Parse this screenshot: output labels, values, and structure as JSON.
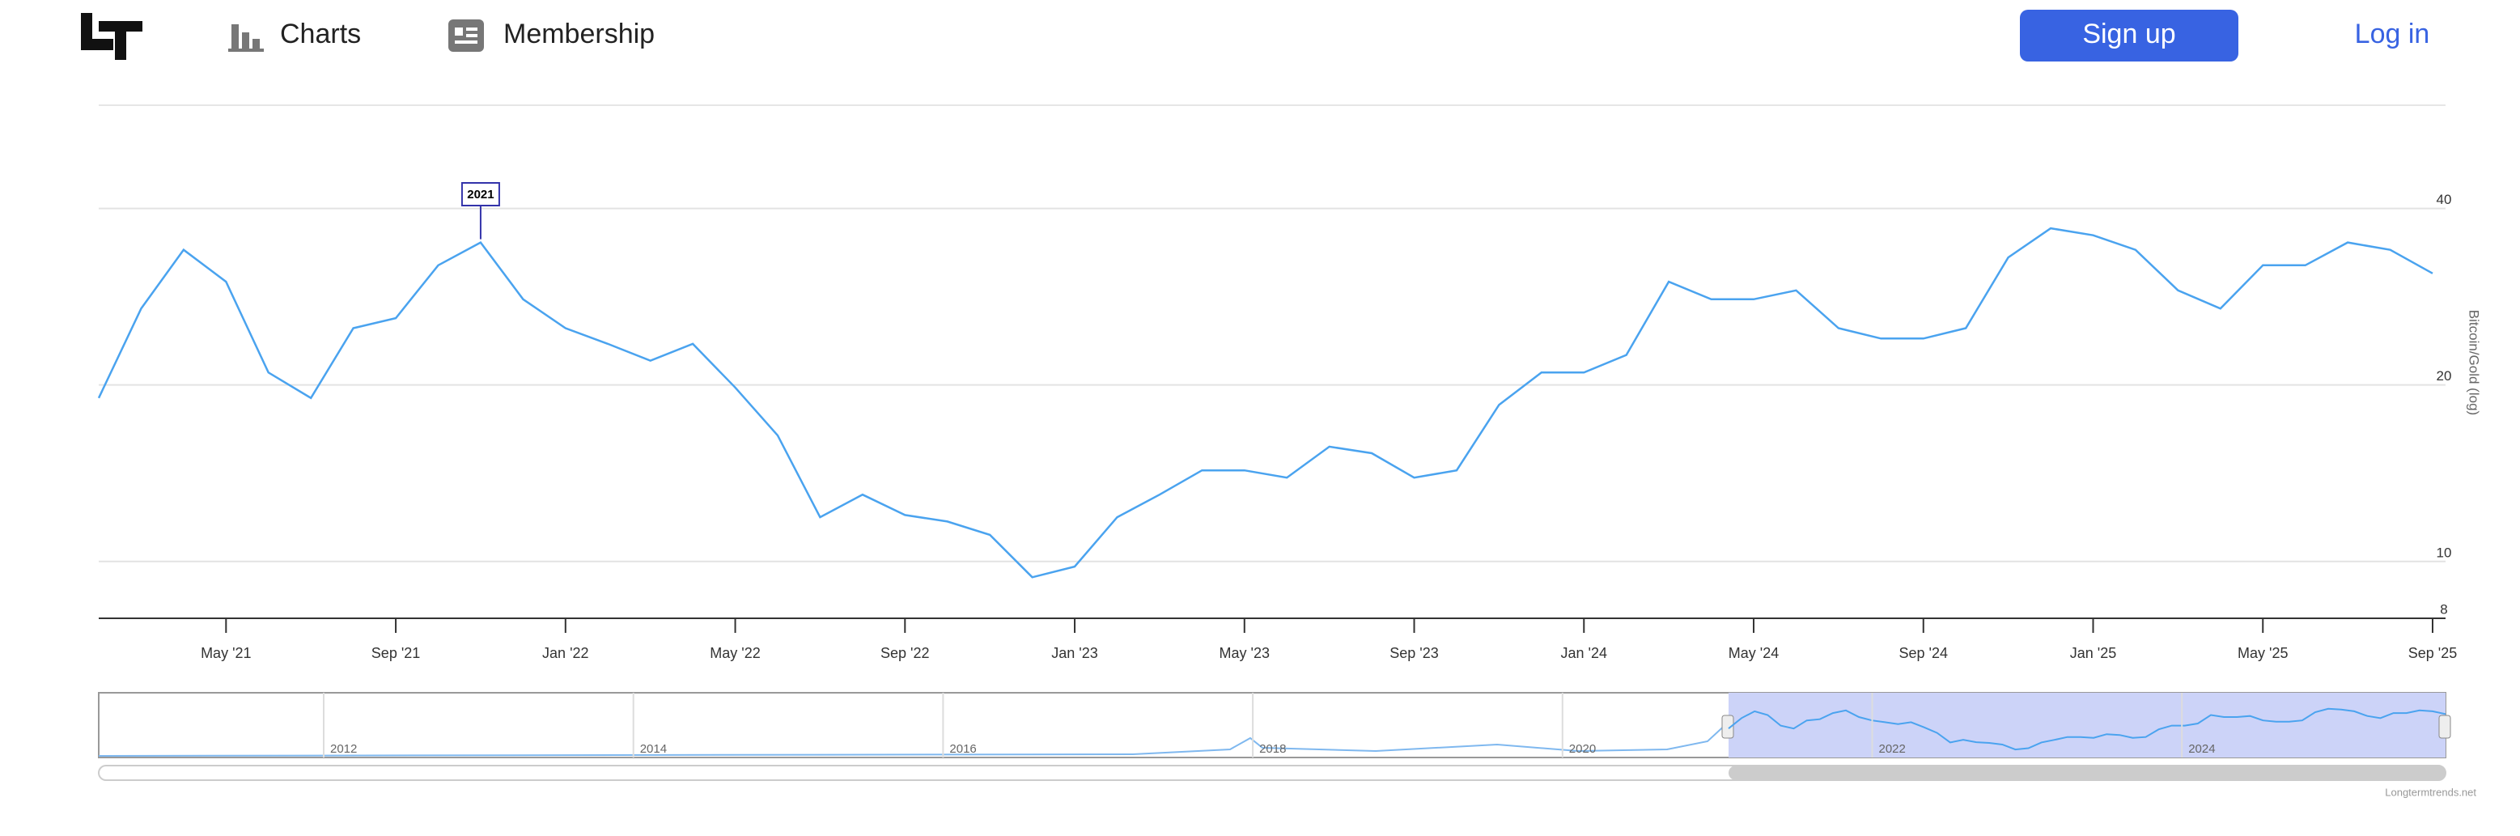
{
  "nav": {
    "links": [
      "Charts",
      "Membership"
    ],
    "signup": "Sign up",
    "login": "Log in"
  },
  "chart_data": {
    "type": "line",
    "log_y": true,
    "grid": true,
    "y_label": "Bitcoin/Gold (log)",
    "x": [
      "2021-02",
      "2021-03",
      "2021-04",
      "2021-05",
      "2021-06",
      "2021-07",
      "2021-08",
      "2021-09",
      "2021-10",
      "2021-11",
      "2021-12",
      "2022-01",
      "2022-02",
      "2022-03",
      "2022-04",
      "2022-05",
      "2022-06",
      "2022-07",
      "2022-08",
      "2022-09",
      "2022-10",
      "2022-11",
      "2022-12",
      "2023-01",
      "2023-02",
      "2023-03",
      "2023-04",
      "2023-05",
      "2023-06",
      "2023-07",
      "2023-08",
      "2023-09",
      "2023-10",
      "2023-11",
      "2023-12",
      "2024-01",
      "2024-02",
      "2024-03",
      "2024-04",
      "2024-05",
      "2024-06",
      "2024-07",
      "2024-08",
      "2024-09",
      "2024-10",
      "2024-11",
      "2024-12",
      "2025-01",
      "2025-02",
      "2025-03",
      "2025-04",
      "2025-05",
      "2025-06",
      "2025-07",
      "2025-08",
      "2025-09"
    ],
    "series": [
      {
        "name": "Bitcoin/Gold",
        "color": "#4aa3ef",
        "values": [
          19,
          27,
          34,
          30,
          21,
          19,
          25,
          26,
          32,
          35,
          28,
          25,
          23.5,
          22,
          23.5,
          19.8,
          16.4,
          11.9,
          13,
          12,
          11.7,
          11.1,
          9.4,
          9.8,
          11.9,
          13,
          14.3,
          14.3,
          13.9,
          15.7,
          15.3,
          13.9,
          14.3,
          18.5,
          21,
          21,
          22.5,
          30,
          28,
          28,
          29,
          25,
          24,
          24,
          25,
          33,
          37,
          36,
          34,
          29,
          27,
          32,
          32,
          35,
          34,
          31
        ]
      }
    ],
    "xlim": [
      "2021-02",
      "2025-09"
    ],
    "xticks": [
      {
        "value": "2021-05",
        "label": "May '21"
      },
      {
        "value": "2021-09",
        "label": "Sep '21"
      },
      {
        "value": "2022-01",
        "label": "Jan '22"
      },
      {
        "value": "2022-05",
        "label": "May '22"
      },
      {
        "value": "2022-09",
        "label": "Sep '22"
      },
      {
        "value": "2023-01",
        "label": "Jan '23"
      },
      {
        "value": "2023-05",
        "label": "May '23"
      },
      {
        "value": "2023-09",
        "label": "Sep '23"
      },
      {
        "value": "2024-01",
        "label": "Jan '24"
      },
      {
        "value": "2024-05",
        "label": "May '24"
      },
      {
        "value": "2024-09",
        "label": "Sep '24"
      },
      {
        "value": "2025-01",
        "label": "Jan '25"
      },
      {
        "value": "2025-05",
        "label": "May '25"
      },
      {
        "value": "2025-09",
        "label": "Sep '25"
      }
    ],
    "ylim": [
      8,
      60
    ],
    "yticks": [
      8,
      10,
      20,
      40
    ],
    "annotations": [
      {
        "x": "2021-11",
        "text": "2021"
      }
    ]
  },
  "navigator": {
    "labels": [
      "2012",
      "2014",
      "2016",
      "2018",
      "2020",
      "2022",
      "2024"
    ]
  },
  "footer": "Longtermtrends.net"
}
